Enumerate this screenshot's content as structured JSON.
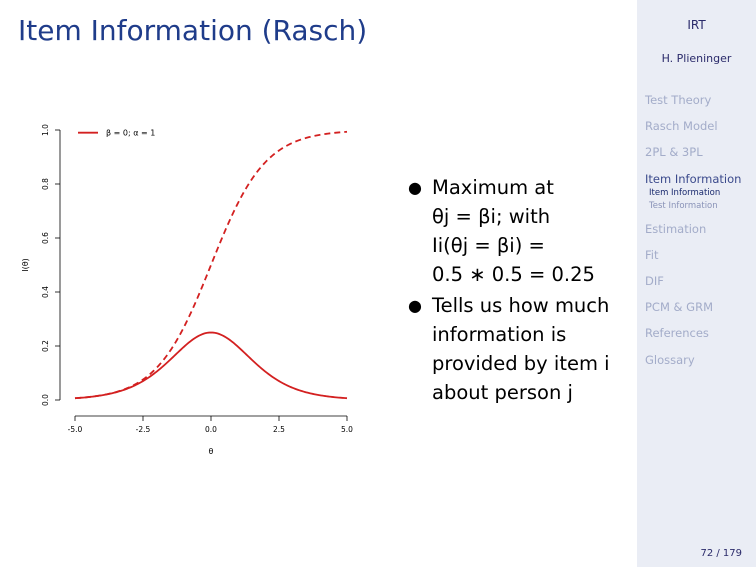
{
  "slide": {
    "title": "Item Information (Rasch)",
    "bullets": [
      [
        "Maximum at",
        "θj = βi; with",
        "Ii(θj = βi) =",
        "0.5 ∗ 0.5 = 0.25"
      ],
      [
        "Tells us how much",
        "information is",
        "provided by item i",
        "about person j"
      ]
    ]
  },
  "sidebar": {
    "title": "IRT",
    "author": "H. Plieninger",
    "sections": [
      {
        "label": "Test Theory",
        "active": false,
        "subs": []
      },
      {
        "label": "Rasch Model",
        "active": false,
        "subs": []
      },
      {
        "label": "2PL & 3PL",
        "active": false,
        "subs": []
      },
      {
        "label": "Item Information",
        "active": true,
        "subs": [
          {
            "label": "Item Information",
            "active": true
          },
          {
            "label": "Test Information",
            "active": false
          }
        ]
      },
      {
        "label": "Estimation",
        "active": false,
        "subs": []
      },
      {
        "label": "Fit",
        "active": false,
        "subs": []
      },
      {
        "label": "DIF",
        "active": false,
        "subs": []
      },
      {
        "label": "PCM & GRM",
        "active": false,
        "subs": []
      },
      {
        "label": "References",
        "active": false,
        "subs": []
      },
      {
        "label": "Glossary",
        "active": false,
        "subs": []
      }
    ],
    "page": "72 / 179"
  },
  "chart_data": {
    "type": "line",
    "xlabel": "θ",
    "ylabel": "I(θ)",
    "xlim": [
      -5,
      5
    ],
    "ylim": [
      0,
      1
    ],
    "xticks": [
      "-5.0",
      "-2.5",
      "0.0",
      "2.5",
      "5.0"
    ],
    "yticks": [
      "0.0",
      "0.2",
      "0.4",
      "0.6",
      "0.8",
      "1.0"
    ],
    "grid": false,
    "legend": {
      "placement": "top-left",
      "entries": [
        "β = 0; α = 1"
      ]
    },
    "colors": {
      "line": "#d32020"
    },
    "series": [
      {
        "name": "β = 0; α = 1",
        "style": "solid",
        "x": [
          -5,
          -4,
          -3,
          -2,
          -1,
          0,
          1,
          2,
          3,
          4,
          5
        ],
        "y": [
          0.007,
          0.018,
          0.045,
          0.105,
          0.197,
          0.25,
          0.197,
          0.105,
          0.045,
          0.018,
          0.007
        ]
      },
      {
        "style": "dashed",
        "x": [
          -5,
          -4,
          -3,
          -2,
          -1,
          0,
          1,
          2,
          3,
          4,
          5
        ],
        "y": [
          0.007,
          0.018,
          0.047,
          0.119,
          0.269,
          0.5,
          0.731,
          0.881,
          0.953,
          0.982,
          0.993
        ]
      }
    ]
  }
}
